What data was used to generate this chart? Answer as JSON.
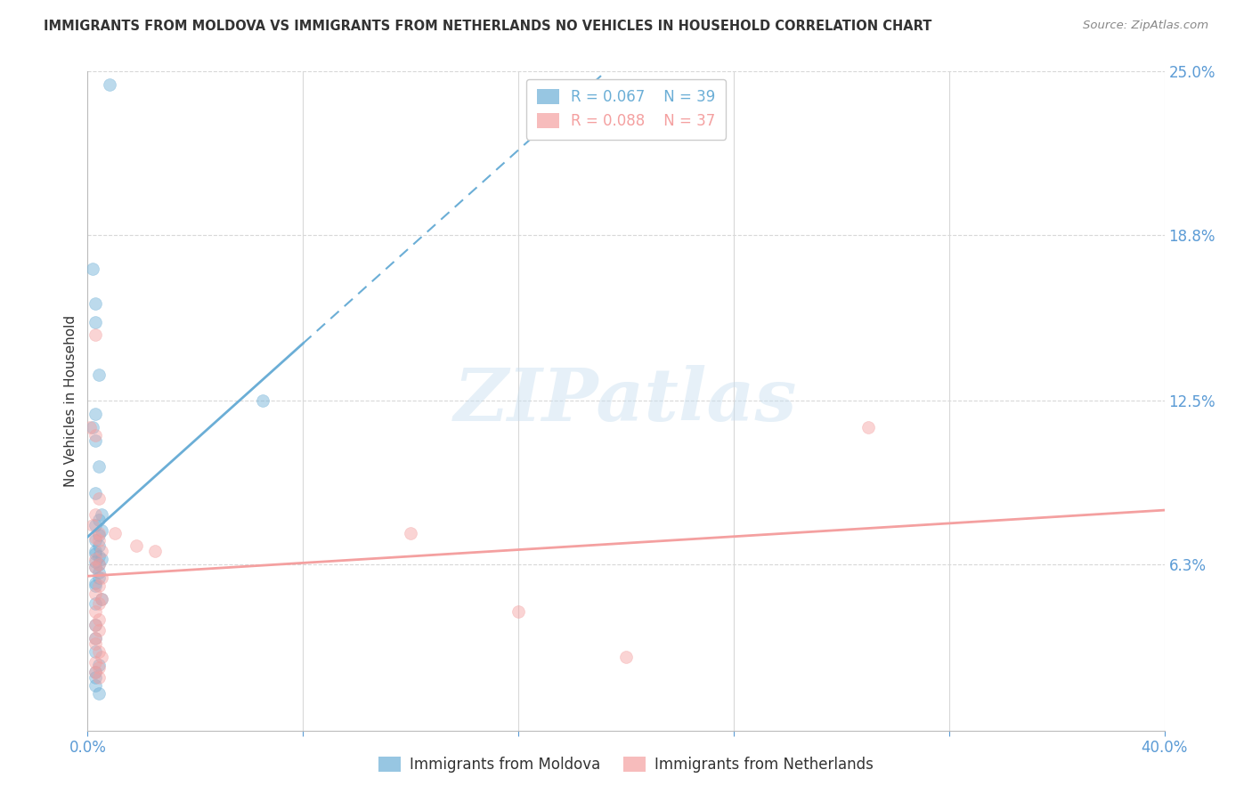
{
  "title": "IMMIGRANTS FROM MOLDOVA VS IMMIGRANTS FROM NETHERLANDS NO VEHICLES IN HOUSEHOLD CORRELATION CHART",
  "source": "Source: ZipAtlas.com",
  "ylabel": "No Vehicles in Household",
  "xlim": [
    0.0,
    0.4
  ],
  "ylim": [
    0.0,
    0.25
  ],
  "xtick_positions": [
    0.0,
    0.08,
    0.16,
    0.24,
    0.32,
    0.4
  ],
  "xticklabels": [
    "0.0%",
    "",
    "",
    "",
    "",
    "40.0%"
  ],
  "ytick_positions": [
    0.063,
    0.125,
    0.188,
    0.25
  ],
  "ytick_labels": [
    "6.3%",
    "12.5%",
    "18.8%",
    "25.0%"
  ],
  "moldova_color": "#6baed6",
  "netherlands_color": "#f4a0a0",
  "legend_R_moldova": "R = 0.067",
  "legend_N_moldova": "N = 39",
  "legend_R_netherlands": "R = 0.088",
  "legend_N_netherlands": "N = 37",
  "moldova_scatter_x": [
    0.008,
    0.002,
    0.003,
    0.003,
    0.004,
    0.002,
    0.003,
    0.003,
    0.004,
    0.003,
    0.005,
    0.004,
    0.003,
    0.005,
    0.004,
    0.003,
    0.004,
    0.003,
    0.003,
    0.004,
    0.005,
    0.003,
    0.004,
    0.003,
    0.004,
    0.004,
    0.003,
    0.003,
    0.005,
    0.003,
    0.003,
    0.003,
    0.003,
    0.004,
    0.003,
    0.065,
    0.003,
    0.003,
    0.004
  ],
  "moldova_scatter_y": [
    0.245,
    0.175,
    0.162,
    0.155,
    0.135,
    0.115,
    0.12,
    0.11,
    0.1,
    0.09,
    0.082,
    0.08,
    0.078,
    0.076,
    0.074,
    0.072,
    0.07,
    0.068,
    0.067,
    0.066,
    0.065,
    0.064,
    0.063,
    0.062,
    0.06,
    0.058,
    0.056,
    0.055,
    0.05,
    0.048,
    0.04,
    0.035,
    0.03,
    0.025,
    0.022,
    0.125,
    0.02,
    0.017,
    0.014
  ],
  "netherlands_scatter_x": [
    0.001,
    0.003,
    0.003,
    0.004,
    0.003,
    0.002,
    0.004,
    0.003,
    0.004,
    0.005,
    0.003,
    0.004,
    0.003,
    0.005,
    0.004,
    0.003,
    0.005,
    0.004,
    0.003,
    0.004,
    0.003,
    0.004,
    0.003,
    0.003,
    0.004,
    0.005,
    0.003,
    0.004,
    0.003,
    0.004,
    0.01,
    0.018,
    0.025,
    0.29,
    0.2,
    0.16,
    0.12
  ],
  "netherlands_scatter_y": [
    0.115,
    0.112,
    0.15,
    0.088,
    0.082,
    0.078,
    0.075,
    0.073,
    0.072,
    0.068,
    0.065,
    0.063,
    0.062,
    0.058,
    0.055,
    0.052,
    0.05,
    0.048,
    0.045,
    0.042,
    0.04,
    0.038,
    0.035,
    0.033,
    0.03,
    0.028,
    0.026,
    0.024,
    0.022,
    0.02,
    0.075,
    0.07,
    0.068,
    0.115,
    0.028,
    0.045,
    0.075
  ],
  "background_color": "#ffffff",
  "grid_color": "#d8d8d8",
  "watermark_text": "ZIPatlas",
  "marker_size": 100,
  "marker_alpha": 0.45,
  "tick_color": "#5b9bd5",
  "label_color": "#333333",
  "source_color": "#888888"
}
